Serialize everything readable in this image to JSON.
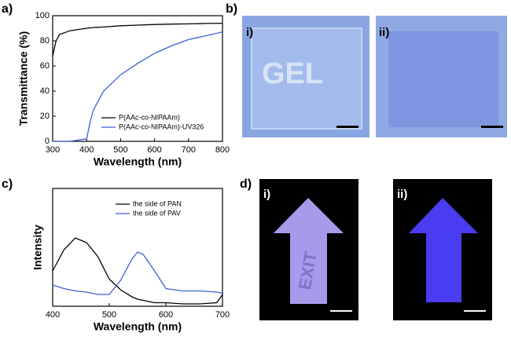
{
  "panel_labels": [
    "a)",
    "b)",
    "c)",
    "d)"
  ],
  "photos": {
    "b": {
      "sub_labels": [
        "i)",
        "ii)"
      ],
      "text": "GEL"
    },
    "d": {
      "sub_labels": [
        "i)",
        "ii)"
      ],
      "text": "EXIT"
    }
  },
  "chart_data": [
    {
      "type": "line",
      "xlabel": "Wavelength (nm)",
      "ylabel": "Transmittance (%)",
      "x": [
        300,
        310,
        320,
        350,
        400,
        410,
        420,
        450,
        500,
        550,
        600,
        650,
        700,
        750,
        800
      ],
      "series": [
        {
          "name": "P(AAc-co-NIPAAm)",
          "color": "#000000",
          "values": [
            68,
            80,
            85,
            88,
            90,
            90.3,
            90.6,
            91,
            92,
            92.5,
            93,
            93.3,
            93.5,
            93.8,
            94
          ]
        },
        {
          "name": "P(AAc-co-NIPAAm)-UV326",
          "color": "#3d5fd8",
          "values": [
            0,
            0,
            0,
            0,
            2,
            15,
            25,
            40,
            53,
            62,
            70,
            76,
            81,
            84,
            87
          ]
        }
      ],
      "xlim": [
        300,
        800
      ],
      "xticks": [
        300,
        400,
        500,
        600,
        700,
        800
      ],
      "ylim": [
        0,
        100
      ],
      "yticks": [
        0,
        20,
        40,
        60,
        80,
        100
      ],
      "legend": "lower-left"
    },
    {
      "type": "line",
      "xlabel": "Wavelength (nm)",
      "ylabel": "Intensity",
      "x": [
        400,
        420,
        440,
        460,
        480,
        500,
        520,
        540,
        550,
        560,
        580,
        600,
        630,
        660,
        690,
        700
      ],
      "series": [
        {
          "name": "the side of PAN",
          "color": "#000000",
          "values": [
            0.3,
            0.48,
            0.58,
            0.54,
            0.42,
            0.23,
            0.14,
            0.08,
            0.06,
            0.05,
            0.03,
            0.03,
            0.02,
            0.02,
            0.03,
            0.1
          ]
        },
        {
          "name": "the side of PAV",
          "color": "#3d5fd8",
          "values": [
            0.18,
            0.15,
            0.13,
            0.12,
            0.1,
            0.1,
            0.22,
            0.4,
            0.46,
            0.44,
            0.3,
            0.15,
            0.13,
            0.13,
            0.12,
            0.11
          ]
        }
      ],
      "xlim": [
        400,
        700
      ],
      "xticks": [
        400,
        500,
        600,
        700
      ],
      "ylim": [
        0,
        1
      ],
      "legend": "upper-right"
    }
  ]
}
